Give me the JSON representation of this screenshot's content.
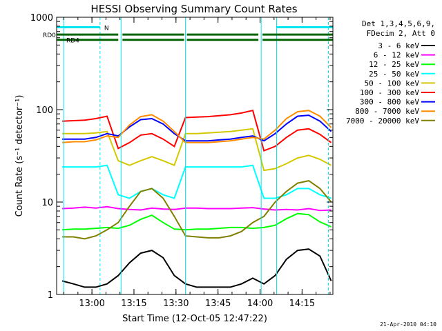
{
  "chart_data": {
    "type": "line",
    "title": "HESSI Observing Summary Count Rates",
    "ylabel": "Count Rate (s⁻¹ detector⁻¹)",
    "xlabel": "Start Time (12-Oct-05 12:47:22)",
    "x_unit": "minutes after 12:47:22 (12-Oct-05)",
    "y_scale": "log",
    "ylim": [
      1,
      1000
    ],
    "xlim": [
      0,
      98.6
    ],
    "x_ticks": [
      {
        "x": 12.6,
        "label": "13:00"
      },
      {
        "x": 27.6,
        "label": "13:15"
      },
      {
        "x": 42.6,
        "label": "13:30"
      },
      {
        "x": 57.6,
        "label": "13:45"
      },
      {
        "x": 72.6,
        "label": "14:00"
      },
      {
        "x": 87.6,
        "label": "14:15"
      }
    ],
    "y_ticks": [
      {
        "y": 1,
        "label": "1"
      },
      {
        "y": 10,
        "label": "10"
      },
      {
        "y": 100,
        "label": "100"
      },
      {
        "y": 1000,
        "label": "1000"
      }
    ],
    "legend": {
      "placement": "right",
      "header": [
        "Det 1,3,4,5,6,9,",
        "FDecim 2, Att 0"
      ]
    },
    "series": [
      {
        "name": "3 - 6 keV",
        "color": "#000000",
        "x": [
          2,
          6,
          10,
          14,
          18,
          22,
          26,
          30,
          34,
          38,
          42,
          46,
          50,
          54,
          58,
          62,
          66,
          70,
          74,
          78,
          82,
          86,
          90,
          94,
          98
        ],
        "values": [
          1.4,
          1.3,
          1.2,
          1.2,
          1.3,
          1.6,
          2.2,
          2.8,
          3.0,
          2.5,
          1.6,
          1.3,
          1.2,
          1.2,
          1.2,
          1.2,
          1.3,
          1.5,
          1.3,
          1.6,
          2.4,
          3.0,
          3.1,
          2.6,
          1.4
        ]
      },
      {
        "name": "6 - 12 keV",
        "color": "#ff00ff",
        "x": [
          2,
          6,
          10,
          14,
          18,
          22,
          26,
          30,
          34,
          38,
          42,
          46,
          50,
          54,
          58,
          62,
          66,
          70,
          74,
          78,
          82,
          86,
          90,
          94,
          98
        ],
        "values": [
          8.5,
          8.6,
          8.8,
          8.6,
          8.9,
          8.5,
          8.3,
          8.2,
          8.6,
          8.4,
          8.3,
          8.6,
          8.6,
          8.5,
          8.5,
          8.5,
          8.6,
          8.7,
          8.4,
          8.2,
          8.3,
          8.2,
          8.5,
          8.1,
          8.2
        ]
      },
      {
        "name": "12 - 25 keV",
        "color": "#00ff00",
        "x": [
          2,
          6,
          10,
          14,
          18,
          22,
          26,
          30,
          34,
          38,
          42,
          46,
          50,
          54,
          58,
          62,
          66,
          70,
          74,
          78,
          82,
          86,
          90,
          94,
          98
        ],
        "values": [
          5.0,
          5.1,
          5.1,
          5.2,
          5.3,
          5.2,
          5.6,
          6.5,
          7.2,
          6.0,
          5.1,
          5.0,
          5.1,
          5.1,
          5.2,
          5.3,
          5.3,
          5.2,
          5.3,
          5.6,
          6.6,
          7.5,
          7.3,
          6.1,
          5.4
        ]
      },
      {
        "name": "25 - 50 keV",
        "color": "#00ffff",
        "x": [
          2,
          6,
          10,
          14,
          18,
          22,
          26,
          30,
          34,
          38,
          42,
          46,
          50,
          54,
          58,
          62,
          66,
          70,
          74,
          78,
          82,
          86,
          90,
          94,
          98
        ],
        "values": [
          24,
          24,
          24,
          24,
          25,
          12,
          11,
          13,
          14,
          12,
          11,
          24,
          24,
          24,
          24,
          24,
          24,
          25,
          11,
          11,
          12,
          14,
          14,
          12,
          11
        ]
      },
      {
        "name": "50 - 100 keV",
        "color": "#d4c800",
        "x": [
          2,
          6,
          10,
          14,
          18,
          22,
          26,
          30,
          34,
          38,
          42,
          46,
          50,
          54,
          58,
          62,
          66,
          70,
          74,
          78,
          82,
          86,
          90,
          94,
          98
        ],
        "values": [
          55,
          55,
          55,
          56,
          58,
          28,
          25,
          28,
          31,
          28,
          25,
          55,
          55,
          56,
          57,
          58,
          60,
          62,
          22,
          23,
          26,
          30,
          32,
          29,
          25
        ]
      },
      {
        "name": "100 - 300 keV",
        "color": "#ff0000",
        "x": [
          2,
          6,
          10,
          14,
          18,
          22,
          26,
          30,
          34,
          38,
          42,
          46,
          50,
          54,
          58,
          62,
          66,
          70,
          74,
          78,
          82,
          86,
          90,
          94,
          98
        ],
        "values": [
          75,
          76,
          77,
          80,
          85,
          38,
          44,
          53,
          55,
          48,
          40,
          82,
          83,
          84,
          86,
          88,
          92,
          98,
          36,
          40,
          50,
          60,
          62,
          54,
          44
        ]
      },
      {
        "name": "300 - 800 keV",
        "color": "#0000ff",
        "x": [
          2,
          6,
          10,
          14,
          18,
          22,
          26,
          30,
          34,
          38,
          42,
          46,
          50,
          54,
          58,
          62,
          66,
          70,
          74,
          78,
          82,
          86,
          90,
          94,
          98
        ],
        "values": [
          48,
          48,
          48,
          50,
          55,
          52,
          65,
          78,
          80,
          70,
          55,
          46,
          46,
          46,
          47,
          48,
          50,
          52,
          46,
          55,
          70,
          85,
          87,
          75,
          58
        ]
      },
      {
        "name": "800 - 7000 keV",
        "color": "#ff8c00",
        "x": [
          2,
          6,
          10,
          14,
          18,
          22,
          26,
          30,
          34,
          38,
          42,
          46,
          50,
          54,
          58,
          62,
          66,
          70,
          74,
          78,
          82,
          86,
          90,
          94,
          98
        ],
        "values": [
          44,
          45,
          45,
          47,
          52,
          50,
          68,
          84,
          88,
          75,
          58,
          44,
          44,
          44,
          45,
          46,
          48,
          50,
          48,
          60,
          80,
          95,
          98,
          85,
          64
        ]
      },
      {
        "name": "7000 - 20000 keV",
        "color": "#808000",
        "x": [
          2,
          6,
          10,
          14,
          18,
          22,
          26,
          30,
          34,
          38,
          42,
          46,
          50,
          54,
          58,
          62,
          66,
          70,
          74,
          78,
          82,
          86,
          90,
          94,
          98
        ],
        "values": [
          4.2,
          4.2,
          4.0,
          4.3,
          5.0,
          6.0,
          9.0,
          13,
          14,
          11,
          7.0,
          4.3,
          4.2,
          4.1,
          4.1,
          4.3,
          4.8,
          6.0,
          7.0,
          10,
          13,
          16,
          17,
          14,
          10
        ]
      }
    ],
    "annotations": {
      "flags": [
        {
          "label": "RD0",
          "color": "#006400",
          "y": 650,
          "segments": [
            [
              0,
              22
            ],
            [
              23.5,
              45.5
            ],
            [
              46.5,
              72
            ],
            [
              73.5,
              98.6
            ]
          ]
        },
        {
          "label": "RD4",
          "color": "#006400",
          "y": 570,
          "segments": [
            [
              0,
              22
            ],
            [
              23.5,
              45.5
            ],
            [
              46.5,
              72
            ],
            [
              73.5,
              98.6
            ]
          ]
        },
        {
          "label": "N",
          "color": "#00e5ee",
          "y": 780,
          "segments": [
            [
              0,
              15.5
            ],
            [
              78.5,
              98.6
            ]
          ]
        }
      ],
      "vlines": [
        {
          "x": 2.5,
          "color": "#00e5ee",
          "dashed": false
        },
        {
          "x": 15.5,
          "color": "#00e5ee",
          "dashed": true
        },
        {
          "x": 23.0,
          "color": "#00e5ee",
          "dashed": false
        },
        {
          "x": 46.0,
          "color": "#00e5ee",
          "dashed": false
        },
        {
          "x": 73.0,
          "color": "#00e5ee",
          "dashed": false
        },
        {
          "x": 78.5,
          "color": "#00e5ee",
          "dashed": false
        },
        {
          "x": 97.0,
          "color": "#00e5ee",
          "dashed": true
        }
      ]
    },
    "footer": "21-Apr-2010 04:10"
  }
}
